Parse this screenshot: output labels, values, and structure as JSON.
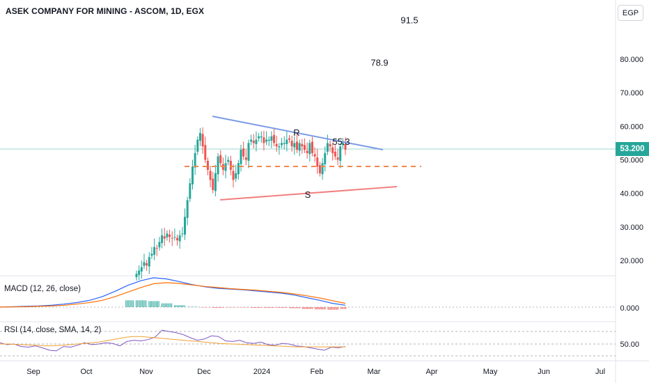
{
  "title": "ASEK COMPANY FOR MINING - ASCOM, 1D, EGX",
  "currency": "EGP",
  "last_price": "53.200",
  "macd_label": "MACD (12, 26, close)",
  "rsi_label": "RSI (14, close, SMA, 14, 2)",
  "colors": {
    "up": "#26a69a",
    "down": "#ef5350",
    "resistance": "#7b9be6",
    "support": "#f28080",
    "dashed": "#f0884e",
    "macd": "#2962ff",
    "signal": "#ff6d00",
    "rsi": "#7e57c2"
  },
  "chart_data": [
    {
      "type": "candlestick",
      "title": "ASEK COMPANY FOR MINING - ASCOM, 1D, EGX",
      "y_ticks": [
        "20.000",
        "30.000",
        "40.000",
        "50.000",
        "60.000",
        "70.000",
        "80.000"
      ],
      "x_ticks": [
        "Sep",
        "Oct",
        "Nov",
        "Dec",
        "2024",
        "Feb",
        "Mar",
        "Apr",
        "May",
        "Jun",
        "Jul"
      ],
      "ylim": [
        12,
        93
      ],
      "last_price": 53.2,
      "closes": [
        16,
        17,
        18,
        19.5,
        18.5,
        21,
        22,
        24,
        23.5,
        25.5,
        27.5,
        26.5,
        28,
        27,
        26.5,
        27,
        26,
        27.5,
        28,
        33,
        38,
        43,
        48,
        52,
        56,
        58,
        54,
        50,
        47,
        44,
        41,
        46,
        51,
        49,
        47,
        49,
        50,
        47,
        44,
        46,
        49,
        53,
        51,
        50,
        55,
        56,
        55,
        56,
        57,
        57,
        55,
        56,
        56,
        57,
        55,
        54,
        54,
        55,
        55,
        56,
        56,
        54,
        55,
        53,
        55,
        54,
        53,
        52,
        55,
        52,
        51,
        48,
        46,
        49,
        52,
        55,
        54,
        52,
        51,
        50,
        54,
        55,
        53
      ],
      "annotations": [
        {
          "text": "91.5",
          "x": "Mar",
          "y": 91.5
        },
        {
          "text": "78.9",
          "x": "Feb-Mar",
          "y": 78.9
        },
        {
          "text": "55.3",
          "x": "Feb",
          "y": 55.3
        },
        {
          "text": "R",
          "x": "Jan",
          "y": 58
        },
        {
          "text": "S",
          "x": "Jan-Feb",
          "y": 39.5
        }
      ],
      "levels": {
        "dashed_level": 48,
        "resistance_start": 63,
        "resistance_end": 52.5,
        "support_start": 38,
        "support_end": 41.5
      }
    },
    {
      "type": "line",
      "title": "MACD (12, 26, close)",
      "y_ticks": [
        "0.000"
      ],
      "series": [
        {
          "name": "MACD",
          "values": [
            0,
            0.1,
            0.2,
            0.3,
            0.5,
            0.8,
            1.2,
            1.8,
            2.8,
            4.2,
            5.8,
            7,
            7.8,
            7.5,
            6.8,
            6,
            5.4,
            5,
            4.8,
            4.6,
            4.3,
            4,
            3.7,
            3.2,
            2.5,
            1.8,
            1,
            0.5
          ]
        },
        {
          "name": "Signal",
          "values": [
            0,
            0.05,
            0.1,
            0.2,
            0.3,
            0.5,
            0.8,
            1.2,
            1.8,
            2.8,
            4,
            5.2,
            6.2,
            6.5,
            6.3,
            5.9,
            5.5,
            5.2,
            4.9,
            4.7,
            4.5,
            4.2,
            3.9,
            3.5,
            3,
            2.4,
            1.7,
            1
          ]
        }
      ]
    },
    {
      "type": "line",
      "title": "RSI (14, close, SMA, 14, 2)",
      "y_ticks": [
        "50.00"
      ],
      "series": [
        {
          "name": "RSI",
          "values": [
            52,
            49,
            50,
            46,
            45,
            47,
            44,
            40,
            39,
            46,
            45,
            48,
            52,
            49,
            50,
            52,
            51,
            47,
            54,
            56,
            55,
            57,
            61,
            72,
            70,
            68,
            65,
            60,
            56,
            58,
            63,
            62,
            55,
            54,
            56,
            52,
            51,
            53,
            49,
            48,
            51,
            50,
            47,
            46,
            44,
            42,
            40,
            45,
            44,
            46
          ]
        },
        {
          "name": "RSI-based MA",
          "values": [
            50,
            50,
            49.5,
            49,
            48.5,
            48,
            47.5,
            47,
            47.5,
            48,
            49,
            50,
            51,
            52,
            53,
            55,
            57,
            59,
            61,
            62,
            62,
            61,
            60,
            59,
            58,
            57,
            56,
            55,
            54,
            53,
            52,
            51,
            50.5,
            50,
            49.5,
            49,
            48.5,
            48,
            47.5,
            47,
            46.5,
            46,
            45.5,
            45.5,
            45.5,
            45.5,
            45.5,
            45.5,
            45.5,
            45.5
          ]
        }
      ]
    }
  ]
}
